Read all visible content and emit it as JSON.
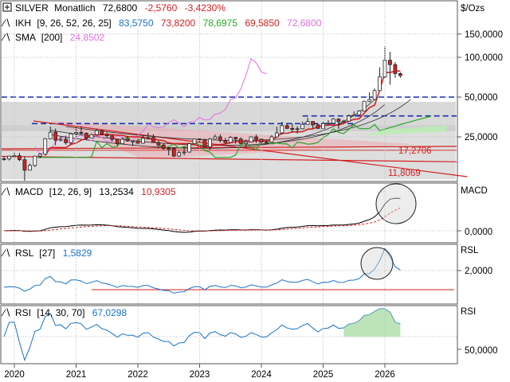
{
  "header": {
    "symbol": "SILVER",
    "period": "Monatlich",
    "last": "72,6800",
    "change": "-2,5760",
    "change_pct": "-3,4230%"
  },
  "indicators": {
    "ikh": {
      "name": "IKH",
      "params": "[9, 26, 52, 26, 25]",
      "values": [
        "83,5750",
        "73,8200",
        "78,6975",
        "69,5850",
        "72,6800"
      ],
      "colors": [
        "#1a73c8",
        "#d22222",
        "#26a626",
        "#d22222",
        "#e070e0"
      ]
    },
    "sma": {
      "name": "SMA",
      "params": "[200]",
      "value": "24,8502",
      "color": "#e070e0"
    },
    "macd": {
      "name": "MACD",
      "params": "[12, 26, 9]",
      "value1": "13,2534",
      "value2": "10,9305",
      "axis_label": "MACD"
    },
    "rsl": {
      "name": "RSL",
      "params": "[27]",
      "value": "1,5829",
      "axis_label": "RSL"
    },
    "rsi": {
      "name": "RSI",
      "params": "[14, 30, 70]",
      "value": "67,0298",
      "axis_label": "RSI"
    }
  },
  "price_axis": {
    "unit": "$/Ozs",
    "ticks": [
      {
        "label": "150,0000",
        "value": 150
      },
      {
        "label": "100,0000",
        "value": 100
      },
      {
        "label": "50,0000",
        "value": 50
      },
      {
        "label": "25,0000",
        "value": 25
      }
    ]
  },
  "macd_axis": {
    "ticks": [
      {
        "label": "0,0000",
        "value": 0
      }
    ]
  },
  "rsl_axis": {
    "ticks": [
      {
        "label": "2,0000",
        "value": 2
      }
    ]
  },
  "rsi_axis": {
    "ticks": [
      {
        "label": "50,0000",
        "value": 50
      }
    ]
  },
  "time_axis": {
    "labels": [
      "2020",
      "2021",
      "2022",
      "2023",
      "2024",
      "2025",
      "2026"
    ],
    "start": 2020.0
  },
  "annotations": [
    {
      "label": "17,2706",
      "value": 17.27
    },
    {
      "label": "11,8069",
      "value": 11.81
    }
  ],
  "chart_data": [
    {
      "type": "candlestick",
      "title": "SILVER Monatlich",
      "ylabel": "$/Ozs",
      "yscale": "log",
      "ylim": [
        13,
        190
      ],
      "x": [
        "2019-11",
        "2019-12",
        "2020-01",
        "2020-02",
        "2020-03",
        "2020-04",
        "2020-05",
        "2020-06",
        "2020-07",
        "2020-08",
        "2020-09",
        "2020-10",
        "2020-11",
        "2020-12",
        "2021-01",
        "2021-02",
        "2021-03",
        "2021-04",
        "2021-05",
        "2021-06",
        "2021-07",
        "2021-08",
        "2021-09",
        "2021-10",
        "2021-11",
        "2021-12",
        "2022-01",
        "2022-02",
        "2022-03",
        "2022-04",
        "2022-05",
        "2022-06",
        "2022-07",
        "2022-08",
        "2022-09",
        "2022-10",
        "2022-11",
        "2022-12",
        "2023-01",
        "2023-02",
        "2023-03",
        "2023-04",
        "2023-05",
        "2023-06",
        "2023-07",
        "2023-08",
        "2023-09",
        "2023-10",
        "2023-11",
        "2023-12",
        "2024-01",
        "2024-02",
        "2024-03",
        "2024-04",
        "2024-05",
        "2024-06",
        "2024-07",
        "2024-08",
        "2024-09",
        "2024-10",
        "2024-11",
        "2024-12",
        "2025-01",
        "2025-02",
        "2025-03",
        "2025-04",
        "2025-05",
        "2025-06",
        "2025-07",
        "2025-08",
        "2025-09",
        "2025-10",
        "2025-11",
        "2025-12",
        "2026-01",
        "2026-02",
        "2026-03",
        "2026-04"
      ],
      "open": [
        17.1,
        17.0,
        17.9,
        18.0,
        16.8,
        14.0,
        15.2,
        17.9,
        18.5,
        24.2,
        27.1,
        23.6,
        24.0,
        22.6,
        26.4,
        27.0,
        26.6,
        24.5,
        26.0,
        27.9,
        26.2,
        25.5,
        24.0,
        22.2,
        24.0,
        23.3,
        23.3,
        22.4,
        24.4,
        24.7,
        22.7,
        21.7,
        20.4,
        20.4,
        17.9,
        19.0,
        19.2,
        22.2,
        24.1,
        23.9,
        21.0,
        24.1,
        25.0,
        23.5,
        22.7,
        24.8,
        24.1,
        22.3,
        22.9,
        25.0,
        24.0,
        22.8,
        22.8,
        25.0,
        26.8,
        30.4,
        29.0,
        28.5,
        28.8,
        31.1,
        32.7,
        30.8,
        29.0,
        31.4,
        31.7,
        34.1,
        32.6,
        32.9,
        36.0,
        36.7,
        39.2,
        46.5,
        48.0,
        56.0,
        71.0,
        95.0,
        88.0,
        75.3
      ],
      "close": [
        17.0,
        17.9,
        18.0,
        16.8,
        14.0,
        15.2,
        17.9,
        18.5,
        24.2,
        27.1,
        23.6,
        24.0,
        22.6,
        26.4,
        27.0,
        26.6,
        24.5,
        26.0,
        27.9,
        26.2,
        25.5,
        24.0,
        22.2,
        24.0,
        23.3,
        23.3,
        22.4,
        24.4,
        24.7,
        22.7,
        21.7,
        20.4,
        20.4,
        17.9,
        19.0,
        19.2,
        22.2,
        24.1,
        23.9,
        21.0,
        24.1,
        25.0,
        23.5,
        22.7,
        24.8,
        24.1,
        22.3,
        22.9,
        25.0,
        24.0,
        22.8,
        22.8,
        25.0,
        26.8,
        30.4,
        29.0,
        28.5,
        28.8,
        31.1,
        32.7,
        30.8,
        29.0,
        31.4,
        31.7,
        34.1,
        32.6,
        32.9,
        36.0,
        36.7,
        39.2,
        46.5,
        48.0,
        56.0,
        71.0,
        95.0,
        88.0,
        75.3,
        72.68
      ],
      "high": [
        17.8,
        18.0,
        18.9,
        18.9,
        17.8,
        15.7,
        17.9,
        18.8,
        24.5,
        29.9,
        28.9,
        25.3,
        25.5,
        26.9,
        30.1,
        30.1,
        27.1,
        26.4,
        28.7,
        28.3,
        26.9,
        25.1,
        24.3,
        24.8,
        25.4,
        23.4,
        24.7,
        25.5,
        26.9,
        26.2,
        23.3,
        22.5,
        20.9,
        20.9,
        19.6,
        21.2,
        22.3,
        24.3,
        24.6,
        24.1,
        24.5,
        26.1,
        26.1,
        24.5,
        25.3,
        25.0,
        24.8,
        23.8,
        25.2,
        26.0,
        24.0,
        23.4,
        25.8,
        29.8,
        32.5,
        31.5,
        31.7,
        30.0,
        32.7,
        34.9,
        32.0,
        31.6,
        32.3,
        33.4,
        34.6,
        34.6,
        33.7,
        36.9,
        39.1,
        39.8,
        47.0,
        54.5,
        58.0,
        84.0,
        121.0,
        110.0,
        92.0,
        77.0
      ],
      "low": [
        16.5,
        16.6,
        17.3,
        16.4,
        11.6,
        14.0,
        14.8,
        17.2,
        18.4,
        24.1,
        21.6,
        23.1,
        21.8,
        22.0,
        25.0,
        25.9,
        23.8,
        24.5,
        25.7,
        25.7,
        24.6,
        23.0,
        21.4,
        22.0,
        23.0,
        21.4,
        22.0,
        22.2,
        23.9,
        22.6,
        20.5,
        20.0,
        18.1,
        17.6,
        17.6,
        18.1,
        19.0,
        21.9,
        22.7,
        20.9,
        19.9,
        24.0,
        22.7,
        22.1,
        22.5,
        22.2,
        22.1,
        20.7,
        22.8,
        22.5,
        22.0,
        22.2,
        22.7,
        24.7,
        26.0,
        28.7,
        27.0,
        26.5,
        28.5,
        31.0,
        29.0,
        28.8,
        29.0,
        31.0,
        31.5,
        28.8,
        31.8,
        32.8,
        35.9,
        36.5,
        39.2,
        46.0,
        47.0,
        56.0,
        70.0,
        62.0,
        70.0,
        70.0
      ],
      "overlays": [
        {
          "name": "SMA [200]",
          "value": 24.85
        },
        {
          "name": "horizontal level",
          "value": 50.0
        },
        {
          "name": "horizontal level",
          "value": 36.0
        },
        {
          "name": "horizontal level",
          "value": 31.5
        },
        {
          "name": "horizontal level",
          "value": 17.27
        },
        {
          "name": "trend line",
          "value": 11.81
        }
      ]
    },
    {
      "type": "line",
      "title": "MACD [12, 26, 9]",
      "series": [
        {
          "name": "MACD",
          "last": 13.2534
        },
        {
          "name": "Signal",
          "last": 10.9305
        }
      ]
    },
    {
      "type": "line",
      "title": "RSL [27]",
      "series": [
        {
          "name": "RSL",
          "last": 1.5829
        }
      ],
      "reference": 0.88
    },
    {
      "type": "line",
      "title": "RSI [14, 30, 70]",
      "series": [
        {
          "name": "RSI",
          "last": 67.0298
        }
      ],
      "reference": 50
    }
  ]
}
